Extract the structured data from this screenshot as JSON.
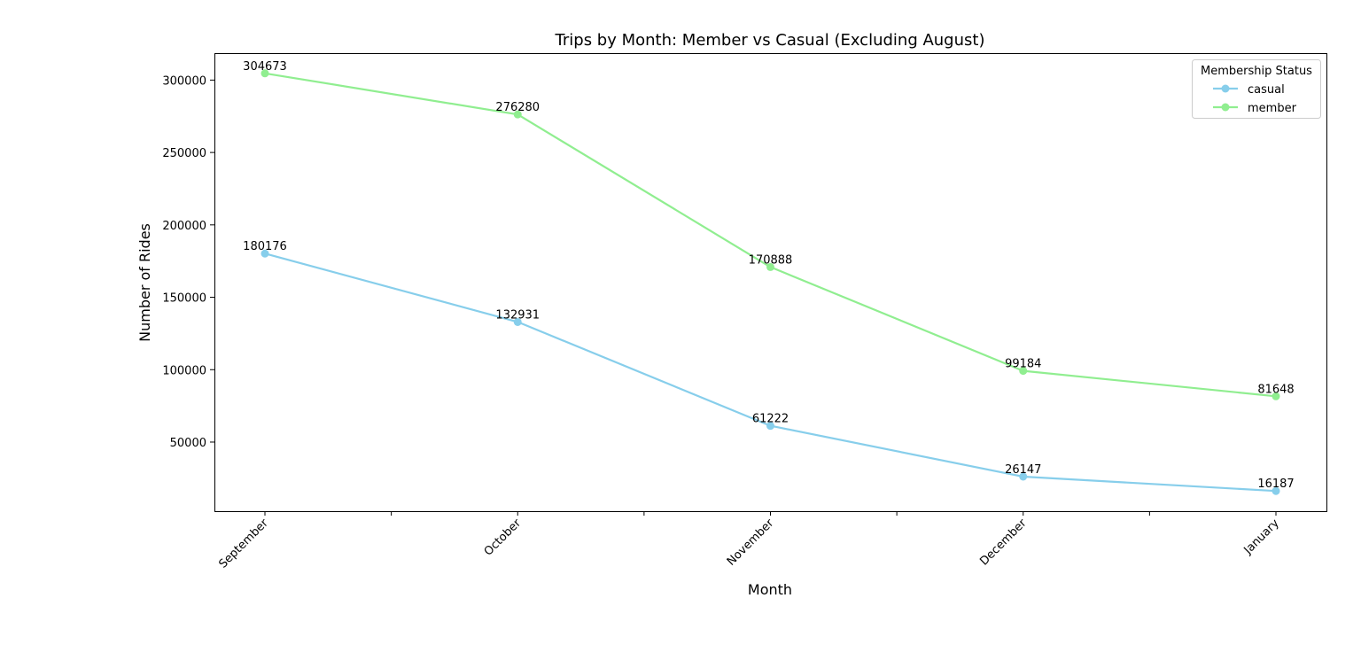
{
  "chart_data": {
    "type": "line",
    "title": "Trips by Month: Member vs Casual (Excluding August)",
    "xlabel": "Month",
    "ylabel": "Number of Rides",
    "categories": [
      "September",
      "October",
      "November",
      "December",
      "January"
    ],
    "series": [
      {
        "name": "casual",
        "color": "#87CEEB",
        "values": [
          180176,
          132931,
          61222,
          26147,
          16187
        ]
      },
      {
        "name": "member",
        "color": "#90EE90",
        "values": [
          304673,
          276280,
          170888,
          99184,
          81648
        ]
      }
    ],
    "ylim": [
      2262,
      318597
    ],
    "yticks": [
      50000,
      100000,
      150000,
      200000,
      250000,
      300000
    ],
    "ytick_labels": [
      "50000",
      "100000",
      "150000",
      "200000",
      "250000",
      "300000"
    ],
    "xtick_rotation": 45,
    "grid": false,
    "data_labels": true,
    "legend": {
      "title": "Membership Status",
      "placement": "top-right"
    }
  }
}
